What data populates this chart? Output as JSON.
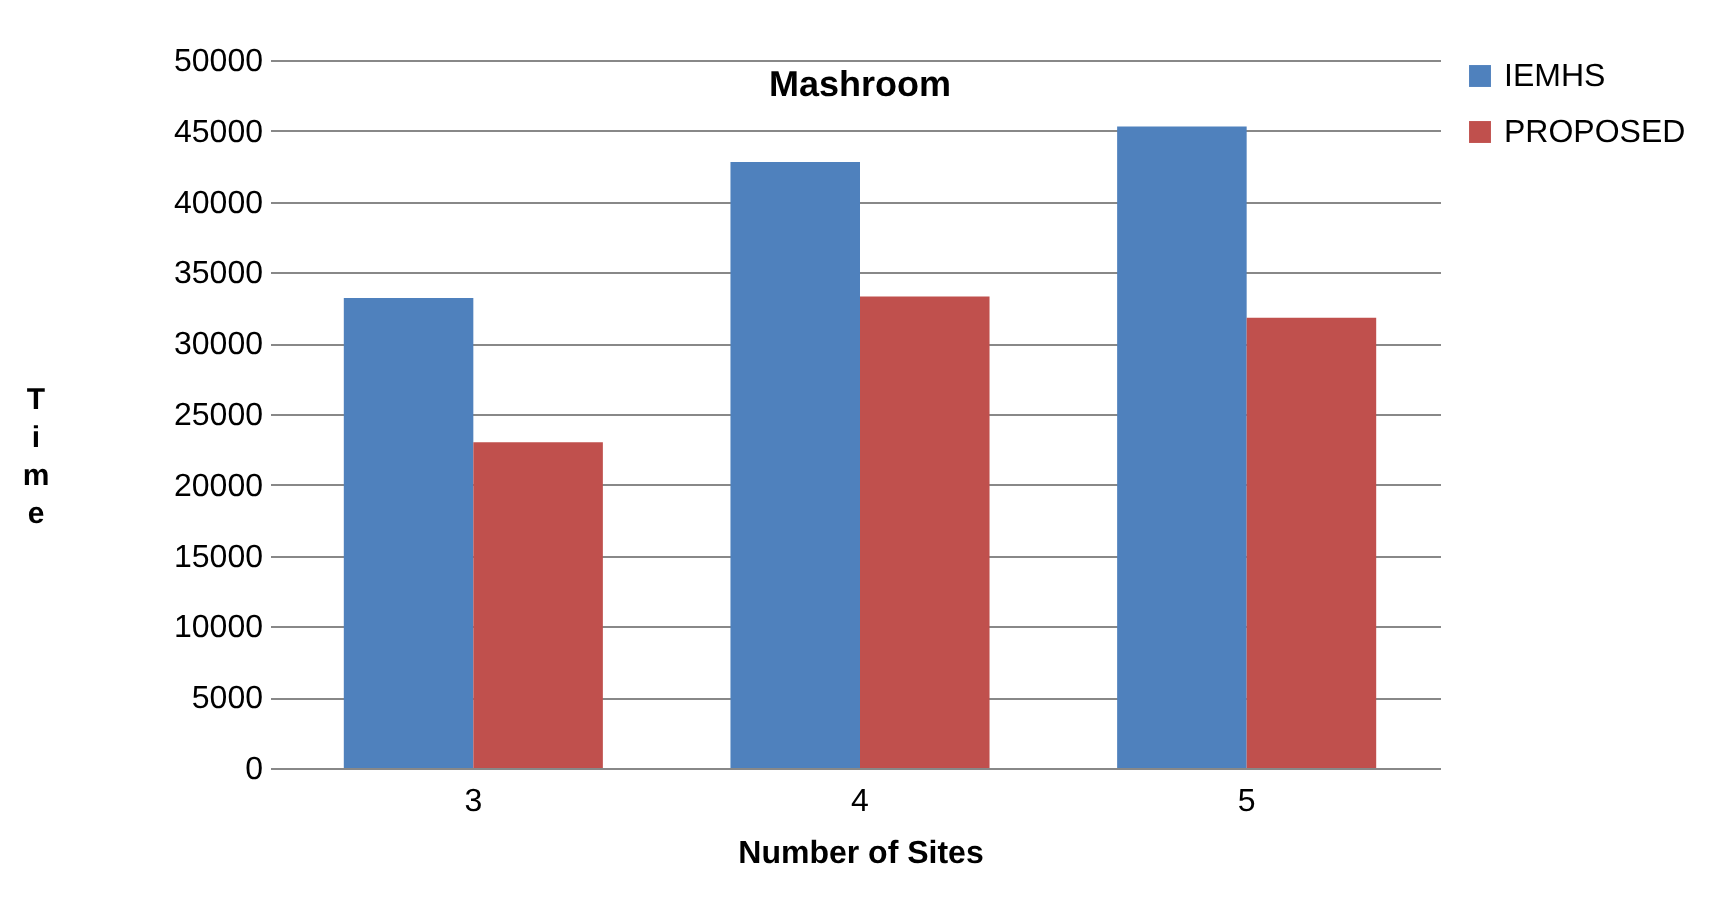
{
  "chart_data": {
    "type": "bar",
    "title": "Mashroom",
    "xlabel": "Number of Sites",
    "ylabel": "Time",
    "categories": [
      "3",
      "4",
      "5"
    ],
    "series": [
      {
        "name": "IEMHS",
        "color": "#4f81bd",
        "values": [
          33200,
          42800,
          45300
        ]
      },
      {
        "name": "PROPOSED",
        "color": "#c0504d",
        "values": [
          23000,
          33300,
          31800
        ]
      }
    ],
    "ylim": [
      0,
      50000
    ],
    "yticks": [
      0,
      5000,
      10000,
      15000,
      20000,
      25000,
      30000,
      35000,
      40000,
      45000,
      50000
    ],
    "grid": "y",
    "legend": "right"
  }
}
